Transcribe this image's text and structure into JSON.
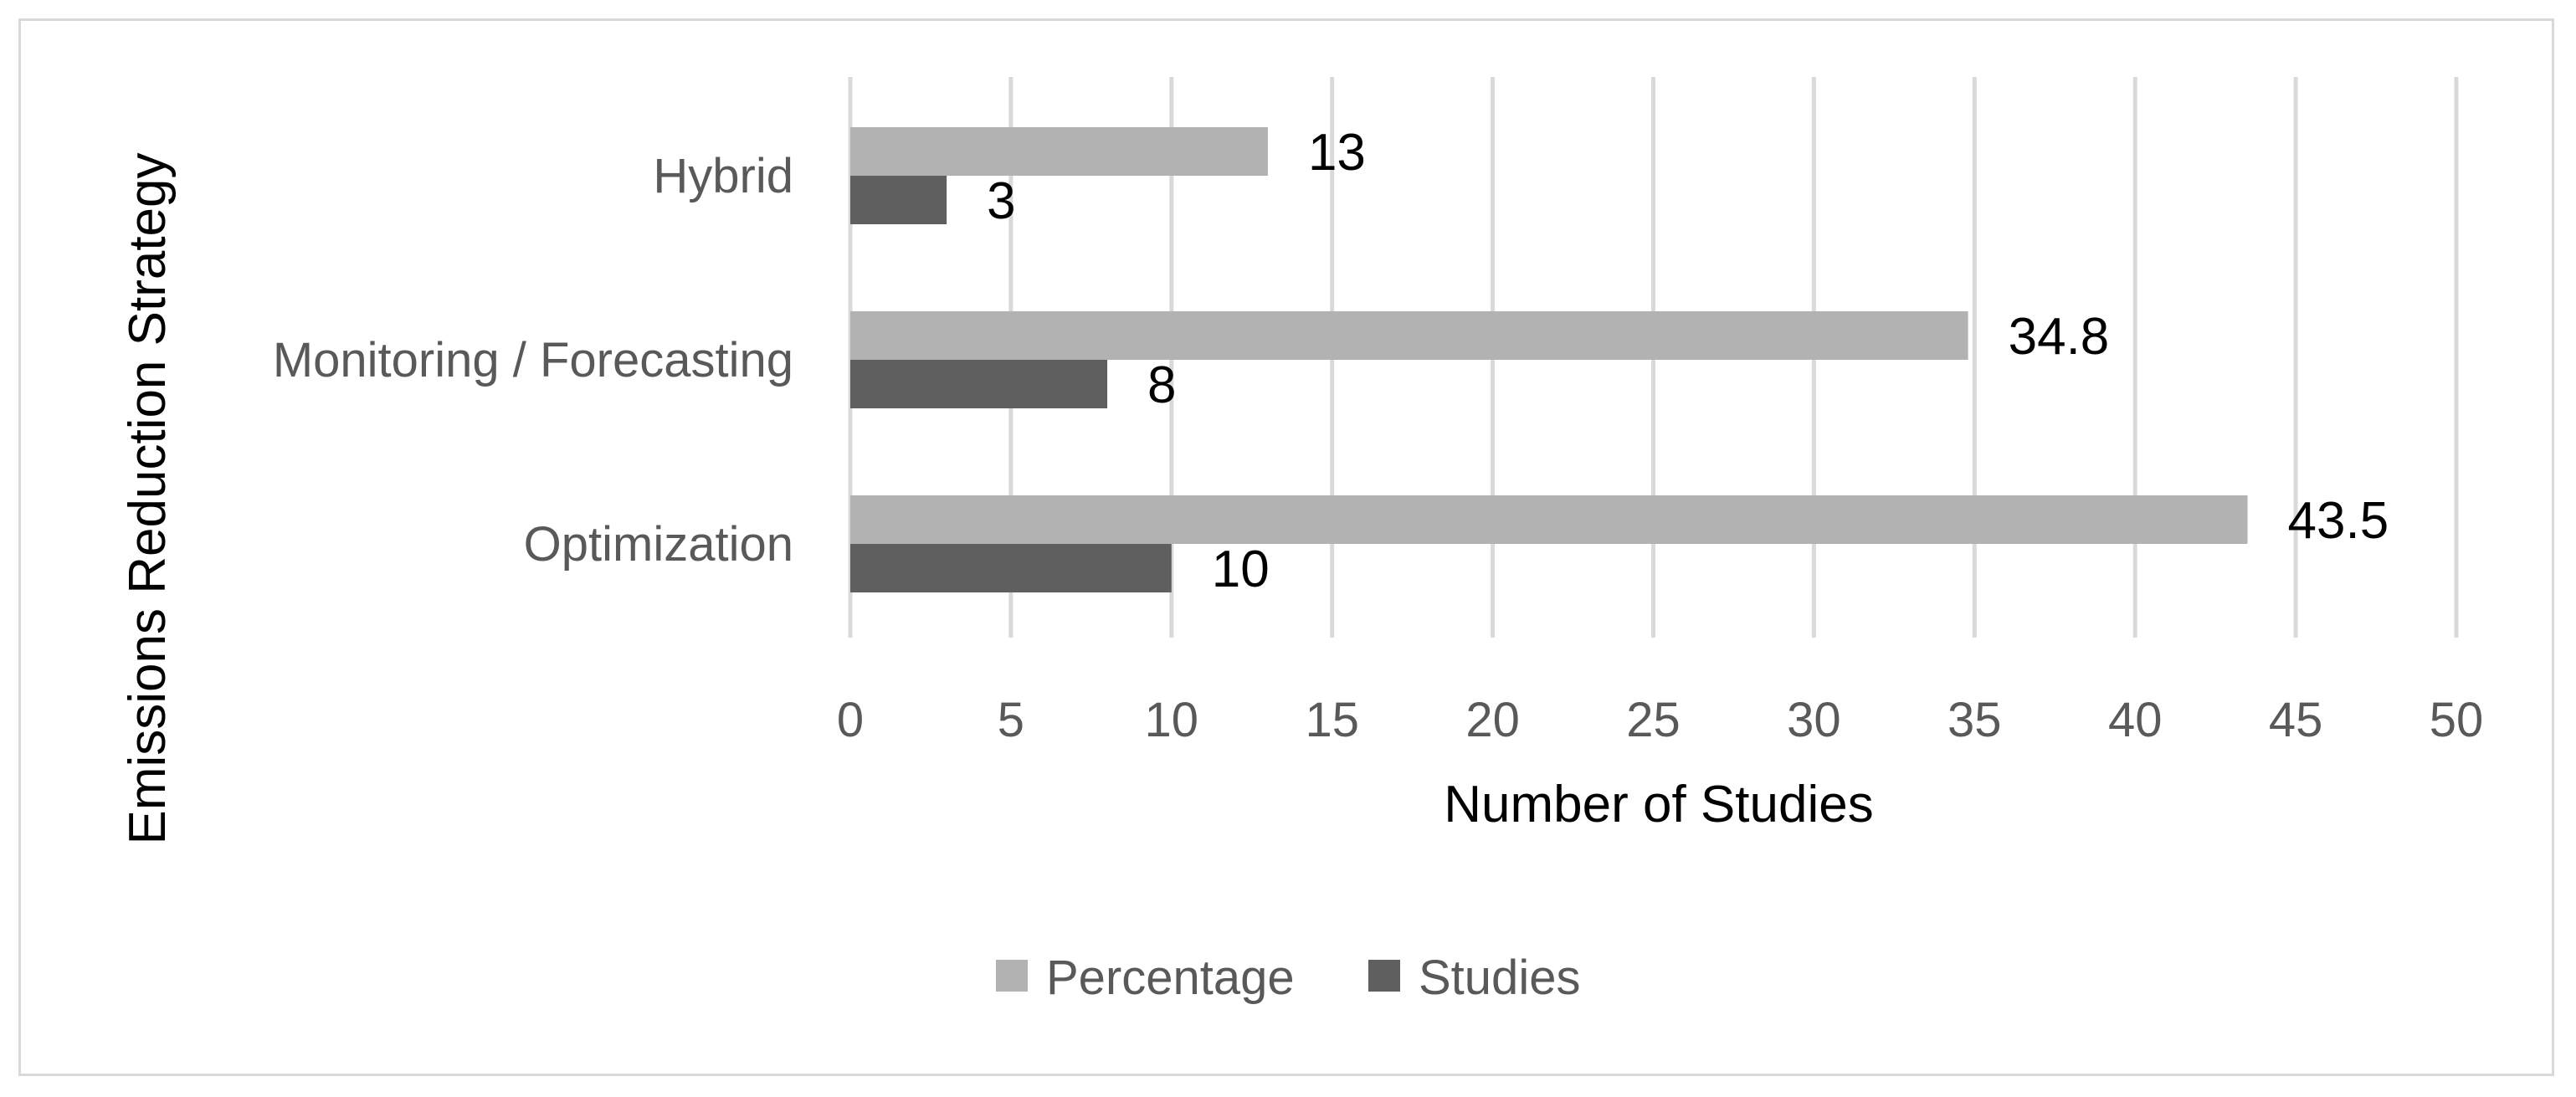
{
  "chart_data": {
    "type": "bar",
    "orientation": "horizontal",
    "categories": [
      "Hybrid",
      "Monitoring / Forecasting",
      "Optimization"
    ],
    "series": [
      {
        "name": "Percentage",
        "values": [
          13,
          34.8,
          43.5
        ],
        "color": "#b2b2b2"
      },
      {
        "name": "Studies",
        "values": [
          3,
          8,
          10
        ],
        "color": "#5f5f5f"
      }
    ],
    "data_labels": [
      [
        "13",
        "34.8",
        "43.5"
      ],
      [
        "3",
        "8",
        "10"
      ]
    ],
    "xlabel": "Number of Studies",
    "ylabel": "Emissions Reduction Strategy",
    "xlim": [
      0,
      50
    ],
    "xticks": [
      0,
      5,
      10,
      15,
      20,
      25,
      30,
      35,
      40,
      45,
      50
    ],
    "grid": "vertical",
    "gridline_color": "#d9d9d9",
    "legend_position": "bottom",
    "legend": [
      "Percentage",
      "Studies"
    ]
  }
}
